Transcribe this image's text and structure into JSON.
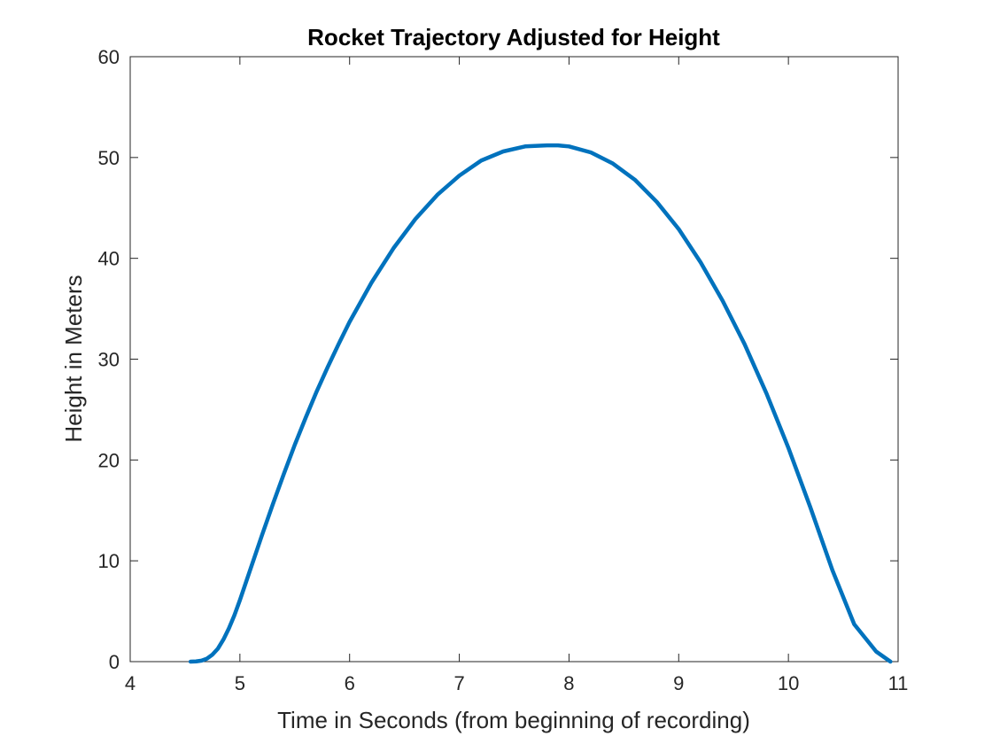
{
  "chart_data": {
    "type": "line",
    "title": "Rocket Trajectory Adjusted for Height",
    "xlabel": "Time in Seconds (from beginning of recording)",
    "ylabel": "Height in Meters",
    "xlim": [
      4,
      11
    ],
    "ylim": [
      0,
      60
    ],
    "xticks": [
      4,
      5,
      6,
      7,
      8,
      9,
      10,
      11
    ],
    "yticks": [
      0,
      10,
      20,
      30,
      40,
      50,
      60
    ],
    "grid": false,
    "line_color": "#0072BD",
    "series": [
      {
        "x": [
          4.55,
          4.6,
          4.65,
          4.7,
          4.75,
          4.8,
          4.85,
          4.9,
          4.95,
          5.0,
          5.1,
          5.2,
          5.3,
          5.4,
          5.5,
          5.6,
          5.7,
          5.8,
          5.9,
          6.0,
          6.2,
          6.4,
          6.6,
          6.8,
          7.0,
          7.2,
          7.4,
          7.6,
          7.8,
          7.9,
          8.0,
          8.2,
          8.4,
          8.6,
          8.8,
          9.0,
          9.2,
          9.4,
          9.6,
          9.8,
          10.0,
          10.2,
          10.4,
          10.6,
          10.8,
          10.93
        ],
        "y": [
          0.0,
          0.02,
          0.1,
          0.3,
          0.7,
          1.3,
          2.2,
          3.3,
          4.6,
          6.1,
          9.3,
          12.5,
          15.6,
          18.6,
          21.5,
          24.2,
          26.8,
          29.2,
          31.5,
          33.7,
          37.6,
          41.0,
          43.9,
          46.3,
          48.2,
          49.7,
          50.6,
          51.1,
          51.2,
          51.2,
          51.1,
          50.5,
          49.4,
          47.8,
          45.6,
          42.9,
          39.6,
          35.8,
          31.5,
          26.6,
          21.2,
          15.3,
          9.1,
          3.7,
          1.0,
          0.0
        ]
      }
    ]
  }
}
